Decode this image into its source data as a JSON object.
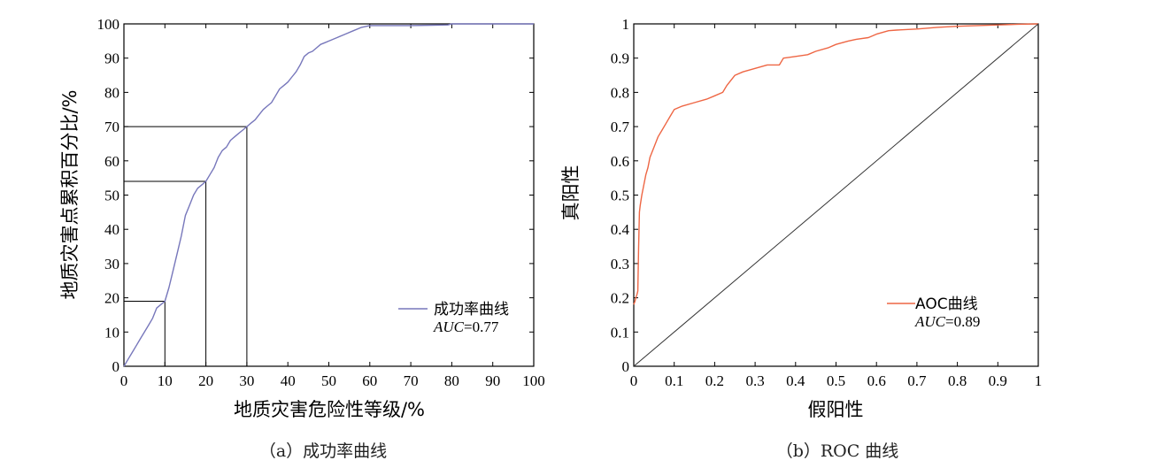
{
  "chart_data": [
    {
      "type": "line",
      "xlabel": "地质灾害危险性等级/%",
      "ylabel": "地质灾害点累积百分比/%",
      "xlim": [
        0,
        100
      ],
      "ylim": [
        0,
        100
      ],
      "xticks": [
        "0",
        "10",
        "20",
        "30",
        "40",
        "50",
        "60",
        "70",
        "80",
        "90",
        "100"
      ],
      "yticks": [
        "0",
        "10",
        "20",
        "30",
        "40",
        "50",
        "60",
        "70",
        "80",
        "90",
        "100"
      ],
      "series": [
        {
          "name": "成功率曲线",
          "color": "#7777bb",
          "x": [
            0,
            1,
            2,
            3,
            4,
            5,
            6,
            7,
            8,
            9,
            10,
            11,
            12,
            13,
            14,
            15,
            16,
            17,
            18,
            19,
            20,
            21,
            22,
            23,
            24,
            25,
            26,
            27,
            28,
            29,
            30,
            31,
            32,
            33,
            34,
            35,
            36,
            37,
            38,
            39,
            40,
            41,
            42,
            43,
            44,
            45,
            46,
            47,
            48,
            49,
            50,
            52,
            54,
            56,
            58,
            60,
            65,
            70,
            75,
            79,
            80,
            85,
            90,
            95,
            100
          ],
          "y": [
            0,
            2,
            4,
            6,
            8,
            10,
            12,
            14,
            17,
            18,
            19,
            23,
            28,
            33,
            38,
            44,
            47,
            50,
            52,
            53,
            54,
            56,
            58,
            61,
            63,
            64,
            66,
            67,
            68,
            69,
            70,
            71,
            72,
            73.5,
            75,
            76,
            77,
            79,
            81,
            82,
            83,
            84.5,
            86,
            88,
            90.5,
            91.5,
            92,
            93,
            94,
            94.5,
            95,
            96,
            97,
            98,
            99,
            99.5,
            99.5,
            99.5,
            99.6,
            99.7,
            100,
            100,
            100,
            100,
            100
          ]
        }
      ],
      "reference_lines": [
        {
          "x": 10,
          "y": 19
        },
        {
          "x": 20,
          "y": 54
        },
        {
          "x": 30,
          "y": 70
        }
      ],
      "legend": {
        "position": "lower-right",
        "entries": [
          "成功率曲线"
        ],
        "auc_label": "AUC",
        "auc_value": "=0.77"
      },
      "caption": "（a）成功率曲线"
    },
    {
      "type": "line",
      "xlabel": "假阳性",
      "ylabel": "真阳性",
      "xlim": [
        0,
        1
      ],
      "ylim": [
        0,
        1
      ],
      "xticks": [
        "0",
        "0.1",
        "0.2",
        "0.3",
        "0.4",
        "0.5",
        "0.6",
        "0.7",
        "0.8",
        "0.9",
        "1"
      ],
      "yticks": [
        "0",
        "0.1",
        "0.2",
        "0.3",
        "0.4",
        "0.5",
        "0.6",
        "0.7",
        "0.8",
        "0.9",
        "1"
      ],
      "series": [
        {
          "name": "AOC曲线",
          "color": "#ee6644",
          "x": [
            0,
            0.003,
            0.005,
            0.008,
            0.01,
            0.012,
            0.014,
            0.016,
            0.02,
            0.025,
            0.03,
            0.035,
            0.04,
            0.05,
            0.06,
            0.07,
            0.08,
            0.09,
            0.1,
            0.12,
            0.15,
            0.18,
            0.2,
            0.22,
            0.23,
            0.25,
            0.27,
            0.3,
            0.33,
            0.36,
            0.37,
            0.4,
            0.43,
            0.45,
            0.48,
            0.5,
            0.53,
            0.55,
            0.58,
            0.6,
            0.63,
            0.65,
            0.7,
            0.75,
            0.8,
            0.85,
            0.9,
            0.95,
            1
          ],
          "y": [
            0.18,
            0.19,
            0.2,
            0.21,
            0.22,
            0.35,
            0.45,
            0.47,
            0.5,
            0.53,
            0.56,
            0.58,
            0.61,
            0.64,
            0.67,
            0.69,
            0.71,
            0.73,
            0.75,
            0.76,
            0.77,
            0.78,
            0.79,
            0.8,
            0.82,
            0.85,
            0.86,
            0.87,
            0.88,
            0.88,
            0.9,
            0.905,
            0.91,
            0.92,
            0.93,
            0.94,
            0.95,
            0.955,
            0.96,
            0.97,
            0.98,
            0.982,
            0.985,
            0.99,
            0.993,
            0.995,
            0.997,
            0.999,
            1.0
          ]
        },
        {
          "name": "",
          "color": "#333333",
          "x": [
            0,
            1
          ],
          "y": [
            0,
            1
          ]
        }
      ],
      "legend": {
        "position": "lower-right",
        "entries": [
          "AOC曲线"
        ],
        "auc_label": "AUC",
        "auc_value": "=0.89"
      },
      "caption": "（b）ROC 曲线"
    }
  ]
}
